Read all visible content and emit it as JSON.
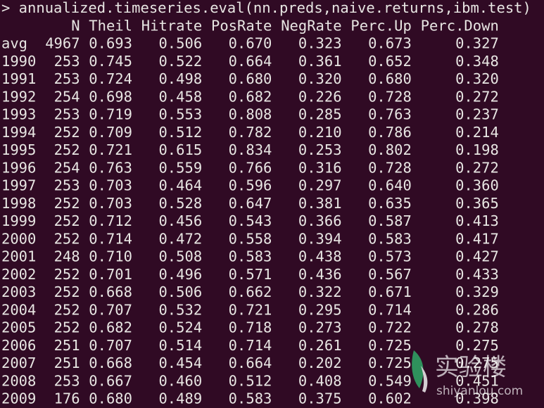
{
  "terminal": {
    "command": "> annualized.timeseries.eval(nn.preds,naive.returns,ibm.test)",
    "table": {
      "header": [
        "N",
        "Theil",
        "Hitrate",
        "PosRate",
        "NegRate",
        "Perc.Up",
        "Perc.Down"
      ],
      "rows": [
        [
          "avg",
          "4967",
          "0.693",
          "0.506",
          "0.670",
          "0.323",
          "0.673",
          "0.327"
        ],
        [
          "1990",
          "253",
          "0.745",
          "0.522",
          "0.664",
          "0.361",
          "0.652",
          "0.348"
        ],
        [
          "1991",
          "253",
          "0.724",
          "0.498",
          "0.680",
          "0.320",
          "0.680",
          "0.320"
        ],
        [
          "1992",
          "254",
          "0.698",
          "0.458",
          "0.682",
          "0.226",
          "0.728",
          "0.272"
        ],
        [
          "1993",
          "253",
          "0.719",
          "0.553",
          "0.808",
          "0.285",
          "0.763",
          "0.237"
        ],
        [
          "1994",
          "252",
          "0.709",
          "0.512",
          "0.782",
          "0.210",
          "0.786",
          "0.214"
        ],
        [
          "1995",
          "252",
          "0.721",
          "0.615",
          "0.834",
          "0.253",
          "0.802",
          "0.198"
        ],
        [
          "1996",
          "254",
          "0.763",
          "0.559",
          "0.766",
          "0.316",
          "0.728",
          "0.272"
        ],
        [
          "1997",
          "253",
          "0.703",
          "0.464",
          "0.596",
          "0.297",
          "0.640",
          "0.360"
        ],
        [
          "1998",
          "252",
          "0.703",
          "0.528",
          "0.647",
          "0.381",
          "0.635",
          "0.365"
        ],
        [
          "1999",
          "252",
          "0.712",
          "0.456",
          "0.543",
          "0.366",
          "0.587",
          "0.413"
        ],
        [
          "2000",
          "252",
          "0.714",
          "0.472",
          "0.558",
          "0.394",
          "0.583",
          "0.417"
        ],
        [
          "2001",
          "248",
          "0.710",
          "0.508",
          "0.583",
          "0.438",
          "0.573",
          "0.427"
        ],
        [
          "2002",
          "252",
          "0.701",
          "0.496",
          "0.571",
          "0.436",
          "0.567",
          "0.433"
        ],
        [
          "2003",
          "252",
          "0.668",
          "0.506",
          "0.662",
          "0.322",
          "0.671",
          "0.329"
        ],
        [
          "2004",
          "252",
          "0.707",
          "0.532",
          "0.721",
          "0.295",
          "0.714",
          "0.286"
        ],
        [
          "2005",
          "252",
          "0.682",
          "0.524",
          "0.718",
          "0.273",
          "0.722",
          "0.278"
        ],
        [
          "2006",
          "251",
          "0.707",
          "0.514",
          "0.714",
          "0.261",
          "0.725",
          "0.275"
        ],
        [
          "2007",
          "251",
          "0.668",
          "0.454",
          "0.664",
          "0.202",
          "0.725",
          "0.275"
        ],
        [
          "2008",
          "253",
          "0.667",
          "0.460",
          "0.512",
          "0.408",
          "0.549",
          "0.451"
        ],
        [
          "2009",
          "176",
          "0.680",
          "0.489",
          "0.583",
          "0.375",
          "0.602",
          "0.398"
        ]
      ]
    },
    "watermark": {
      "brand": "实验楼",
      "site": "shiyanlou.com"
    }
  }
}
